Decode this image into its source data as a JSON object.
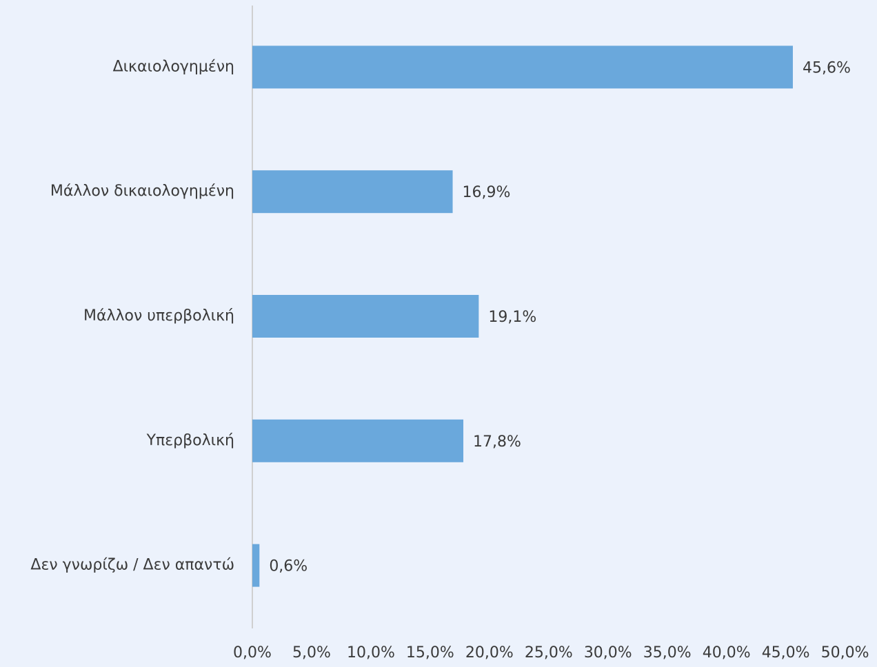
{
  "chart_data": {
    "type": "bar",
    "orientation": "horizontal",
    "categories": [
      "Δικαιολογημένη",
      "Μάλλον δικαιολογημένη",
      "Μάλλον υπερβολική",
      "Υπερβολική",
      "Δεν γνωρίζω / Δεν απαντώ"
    ],
    "values": [
      45.6,
      16.9,
      19.1,
      17.8,
      0.6
    ],
    "value_labels": [
      "45,6%",
      "16,9%",
      "19,1%",
      "17,8%",
      "0,6%"
    ],
    "color": "#6aa8dc",
    "xlim": [
      0,
      50
    ],
    "xticks": [
      {
        "value": 0,
        "label": "0,0%"
      },
      {
        "value": 5,
        "label": "5,0%"
      },
      {
        "value": 10,
        "label": "10,0%"
      },
      {
        "value": 15,
        "label": "15,0%"
      },
      {
        "value": 20,
        "label": "20,0%"
      },
      {
        "value": 25,
        "label": "25,0%"
      },
      {
        "value": 30,
        "label": "30,0%"
      },
      {
        "value": 35,
        "label": "35,0%"
      },
      {
        "value": 40,
        "label": "40,0%"
      },
      {
        "value": 45,
        "label": "45,0%"
      },
      {
        "value": 50,
        "label": "50,0%"
      }
    ],
    "grid": false
  }
}
